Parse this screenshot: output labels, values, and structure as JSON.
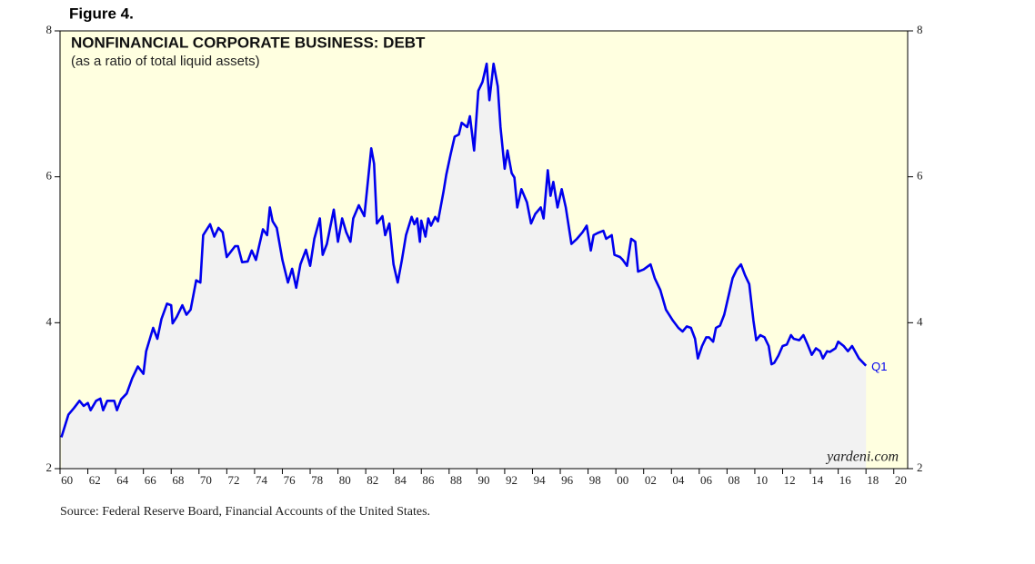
{
  "chart_data": {
    "type": "area-line",
    "figure_label": "Figure 4.",
    "title": "NONFINANCIAL CORPORATE BUSINESS: DEBT",
    "subtitle": "(as a ratio of total liquid assets)",
    "annotation": "Q1",
    "watermark": "yardeni.com",
    "source": "Source: Federal Reserve Board, Financial Accounts of the United States.",
    "color": "#0000ee",
    "area_color": "#f2f2f2",
    "background": "#ffffe0",
    "xlim": [
      1960,
      2021
    ],
    "ylim": [
      2,
      8
    ],
    "yticks": [
      2,
      4,
      6,
      8
    ],
    "xticks": [
      {
        "value": 1960,
        "label": "60"
      },
      {
        "value": 1962,
        "label": "62"
      },
      {
        "value": 1964,
        "label": "64"
      },
      {
        "value": 1966,
        "label": "66"
      },
      {
        "value": 1968,
        "label": "68"
      },
      {
        "value": 1970,
        "label": "70"
      },
      {
        "value": 1972,
        "label": "72"
      },
      {
        "value": 1974,
        "label": "74"
      },
      {
        "value": 1976,
        "label": "76"
      },
      {
        "value": 1978,
        "label": "78"
      },
      {
        "value": 1980,
        "label": "80"
      },
      {
        "value": 1982,
        "label": "82"
      },
      {
        "value": 1984,
        "label": "84"
      },
      {
        "value": 1986,
        "label": "86"
      },
      {
        "value": 1988,
        "label": "88"
      },
      {
        "value": 1990,
        "label": "90"
      },
      {
        "value": 1992,
        "label": "92"
      },
      {
        "value": 1994,
        "label": "94"
      },
      {
        "value": 1996,
        "label": "96"
      },
      {
        "value": 1998,
        "label": "98"
      },
      {
        "value": 2000,
        "label": "00"
      },
      {
        "value": 2002,
        "label": "02"
      },
      {
        "value": 2004,
        "label": "04"
      },
      {
        "value": 2006,
        "label": "06"
      },
      {
        "value": 2008,
        "label": "08"
      },
      {
        "value": 2010,
        "label": "10"
      },
      {
        "value": 2012,
        "label": "12"
      },
      {
        "value": 2014,
        "label": "14"
      },
      {
        "value": 2016,
        "label": "16"
      },
      {
        "value": 2018,
        "label": "18"
      },
      {
        "value": 2020,
        "label": "20"
      }
    ],
    "x": [
      1960.1,
      1960.6,
      1961.0,
      1961.4,
      1961.7,
      1962.0,
      1962.2,
      1962.6,
      1962.9,
      1963.1,
      1963.4,
      1963.9,
      1964.1,
      1964.4,
      1964.8,
      1965.2,
      1965.6,
      1966.0,
      1966.2,
      1966.7,
      1967.0,
      1967.3,
      1967.7,
      1968.0,
      1968.1,
      1968.4,
      1968.8,
      1969.1,
      1969.4,
      1969.8,
      1970.1,
      1970.3,
      1970.8,
      1971.1,
      1971.4,
      1971.7,
      1972.0,
      1972.6,
      1972.8,
      1973.1,
      1973.5,
      1973.8,
      1974.1,
      1974.3,
      1974.6,
      1974.9,
      1975.1,
      1975.3,
      1975.6,
      1976.0,
      1976.4,
      1976.7,
      1977.0,
      1977.3,
      1977.7,
      1978.0,
      1978.3,
      1978.7,
      1978.9,
      1979.2,
      1979.7,
      1980.0,
      1980.3,
      1980.6,
      1980.9,
      1981.1,
      1981.5,
      1981.9,
      1982.4,
      1982.6,
      1982.8,
      1983.2,
      1983.4,
      1983.7,
      1984.0,
      1984.3,
      1984.6,
      1984.9,
      1985.3,
      1985.5,
      1985.7,
      1985.9,
      1986.0,
      1986.3,
      1986.5,
      1986.7,
      1987.0,
      1987.2,
      1987.6,
      1987.8,
      1988.1,
      1988.4,
      1988.7,
      1988.9,
      1989.3,
      1989.5,
      1989.8,
      1990.1,
      1990.4,
      1990.7,
      1990.9,
      1991.2,
      1991.5,
      1991.7,
      1992.0,
      1992.2,
      1992.5,
      1992.7,
      1992.9,
      1993.2,
      1993.6,
      1993.9,
      1994.2,
      1994.6,
      1994.8,
      1995.1,
      1995.3,
      1995.5,
      1995.8,
      1996.1,
      1996.4,
      1996.8,
      1997.2,
      1997.6,
      1997.9,
      1998.2,
      1998.4,
      1998.7,
      1999.1,
      1999.3,
      1999.7,
      1999.9,
      2000.3,
      2000.5,
      2000.8,
      2001.1,
      2001.4,
      2001.6,
      2002.0,
      2002.5,
      2002.8,
      2003.2,
      2003.6,
      2004.1,
      2004.5,
      2004.8,
      2005.1,
      2005.4,
      2005.7,
      2005.9,
      2006.2,
      2006.5,
      2006.7,
      2007.0,
      2007.2,
      2007.5,
      2007.8,
      2008.1,
      2008.4,
      2008.7,
      2009.0,
      2009.3,
      2009.6,
      2009.9,
      2010.1,
      2010.4,
      2010.7,
      2011.0,
      2011.2,
      2011.4,
      2011.7,
      2012.0,
      2012.3,
      2012.6,
      2012.8,
      2013.2,
      2013.5,
      2013.8,
      2014.1,
      2014.4,
      2014.7,
      2014.9,
      2015.2,
      2015.4,
      2015.8,
      2016.0,
      2016.4,
      2016.7,
      2017.0,
      2017.5,
      2018.0
    ],
    "values": [
      2.43,
      2.74,
      2.83,
      2.93,
      2.86,
      2.9,
      2.8,
      2.93,
      2.96,
      2.8,
      2.93,
      2.93,
      2.8,
      2.95,
      3.03,
      3.24,
      3.4,
      3.3,
      3.61,
      3.93,
      3.78,
      4.05,
      4.26,
      4.24,
      3.99,
      4.08,
      4.24,
      4.11,
      4.18,
      4.58,
      4.55,
      5.2,
      5.35,
      5.18,
      5.3,
      5.24,
      4.9,
      5.05,
      5.05,
      4.83,
      4.84,
      4.99,
      4.86,
      5.03,
      5.28,
      5.2,
      5.58,
      5.39,
      5.3,
      4.86,
      4.55,
      4.74,
      4.48,
      4.8,
      5.0,
      4.78,
      5.15,
      5.43,
      4.93,
      5.08,
      5.55,
      5.11,
      5.43,
      5.24,
      5.11,
      5.43,
      5.61,
      5.46,
      6.39,
      6.18,
      5.36,
      5.46,
      5.2,
      5.36,
      4.8,
      4.55,
      4.86,
      5.2,
      5.45,
      5.35,
      5.43,
      5.11,
      5.4,
      5.18,
      5.43,
      5.33,
      5.45,
      5.39,
      5.8,
      6.03,
      6.3,
      6.55,
      6.58,
      6.74,
      6.68,
      6.83,
      6.36,
      7.18,
      7.3,
      7.55,
      7.05,
      7.55,
      7.24,
      6.68,
      6.11,
      6.36,
      6.05,
      5.99,
      5.58,
      5.83,
      5.65,
      5.36,
      5.49,
      5.58,
      5.43,
      6.09,
      5.74,
      5.93,
      5.58,
      5.83,
      5.58,
      5.08,
      5.15,
      5.24,
      5.33,
      4.99,
      5.2,
      5.23,
      5.26,
      5.15,
      5.2,
      4.93,
      4.9,
      4.86,
      4.78,
      5.15,
      5.11,
      4.7,
      4.73,
      4.8,
      4.61,
      4.45,
      4.18,
      4.03,
      3.93,
      3.88,
      3.95,
      3.93,
      3.78,
      3.51,
      3.68,
      3.8,
      3.8,
      3.74,
      3.93,
      3.96,
      4.11,
      4.36,
      4.61,
      4.73,
      4.8,
      4.65,
      4.53,
      4.03,
      3.76,
      3.83,
      3.8,
      3.68,
      3.43,
      3.45,
      3.55,
      3.68,
      3.7,
      3.83,
      3.78,
      3.76,
      3.83,
      3.7,
      3.56,
      3.65,
      3.61,
      3.51,
      3.61,
      3.6,
      3.65,
      3.74,
      3.68,
      3.61,
      3.68,
      3.51,
      3.41
    ]
  }
}
